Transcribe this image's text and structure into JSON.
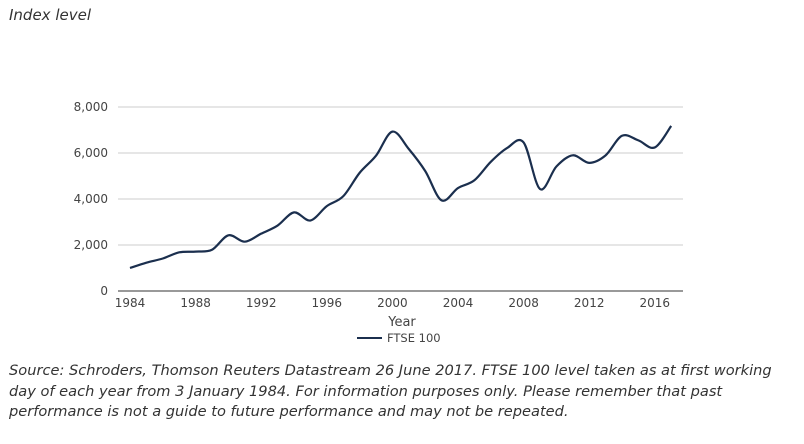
{
  "chart_data": {
    "type": "line",
    "title": "",
    "ylabel": "Index level",
    "xlabel": "Year",
    "xlim": [
      1984,
      2017
    ],
    "ylim": [
      0,
      8000
    ],
    "yticks": [
      0,
      2000,
      4000,
      6000,
      8000
    ],
    "ytick_labels": [
      "0",
      "2,000",
      "4,000",
      "6,000",
      "8,000"
    ],
    "xticks": [
      1984,
      1988,
      1992,
      1996,
      2000,
      2004,
      2008,
      2012,
      2016
    ],
    "xtick_labels": [
      "1984",
      "1988",
      "1992",
      "1996",
      "2000",
      "2004",
      "2008",
      "2012",
      "2016"
    ],
    "grid": true,
    "legend_position": "bottom",
    "series": [
      {
        "name": "FTSE 100",
        "color": "#1b2f4e",
        "x": [
          1984,
          1985,
          1986,
          1987,
          1988,
          1989,
          1990,
          1991,
          1992,
          1993,
          1994,
          1995,
          1996,
          1997,
          1998,
          1999,
          2000,
          2001,
          2002,
          2003,
          2004,
          2005,
          2006,
          2007,
          2008,
          2009,
          2010,
          2011,
          2012,
          2013,
          2014,
          2015,
          2016,
          2017
        ],
        "values": [
          1000,
          1232,
          1413,
          1680,
          1713,
          1793,
          2423,
          2144,
          2493,
          2846,
          3418,
          3066,
          3689,
          4118,
          5136,
          5882,
          6930,
          6174,
          5217,
          3940,
          4477,
          4814,
          5618,
          6220,
          6457,
          4434,
          5413,
          5900,
          5572,
          5898,
          6749,
          6548,
          6242,
          7177
        ]
      }
    ]
  },
  "source_note": "Source: Schroders, Thomson Reuters Datastream 26 June 2017. FTSE 100 level taken as at first working day of each year from 3 January 1984. For information purposes only. Please remember that past performance is not a guide to future performance and may not be repeated."
}
